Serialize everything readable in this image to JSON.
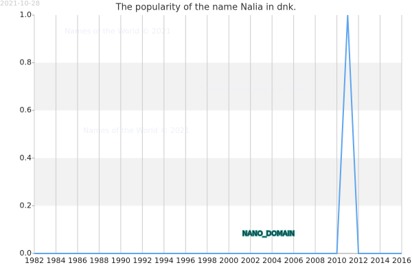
{
  "chart_data": {
    "type": "line",
    "title": "The popularity of the name Nalia in dnk.",
    "date": "2021-10-28",
    "watermarks": [
      "Names of the World © 2021",
      "Names of the World © 2021",
      "Names of the World © 2021"
    ],
    "overlay_label": "NANO_DOMAIN",
    "x": [
      1982,
      1983,
      1984,
      1985,
      1986,
      1987,
      1988,
      1989,
      1990,
      1991,
      1992,
      1993,
      1994,
      1995,
      1996,
      1997,
      1998,
      1999,
      2000,
      2001,
      2002,
      2003,
      2004,
      2005,
      2006,
      2007,
      2008,
      2009,
      2010,
      2011,
      2012,
      2013,
      2014,
      2015,
      2016
    ],
    "series": [
      {
        "color": "#5fa5ef",
        "values": [
          0,
          0,
          0,
          0,
          0,
          0,
          0,
          0,
          0,
          0,
          0,
          0,
          0,
          0,
          0,
          0,
          0,
          0,
          0,
          0,
          0,
          0,
          0,
          0,
          0,
          0,
          0,
          0,
          0,
          1,
          0,
          0,
          0,
          0,
          0
        ]
      }
    ],
    "xlim": [
      1982,
      2016
    ],
    "xticks": [
      1982,
      1984,
      1986,
      1988,
      1990,
      1992,
      1994,
      1996,
      1998,
      2000,
      2002,
      2004,
      2006,
      2008,
      2010,
      2012,
      2014,
      2016
    ],
    "ylim": [
      0,
      1
    ],
    "yticks": [
      {
        "value": 0,
        "label": "0.0"
      },
      0.2,
      0.4,
      0.6,
      0.8,
      {
        "value": 1,
        "label": "1.0"
      }
    ],
    "grid": true,
    "alternate_bands": true
  }
}
